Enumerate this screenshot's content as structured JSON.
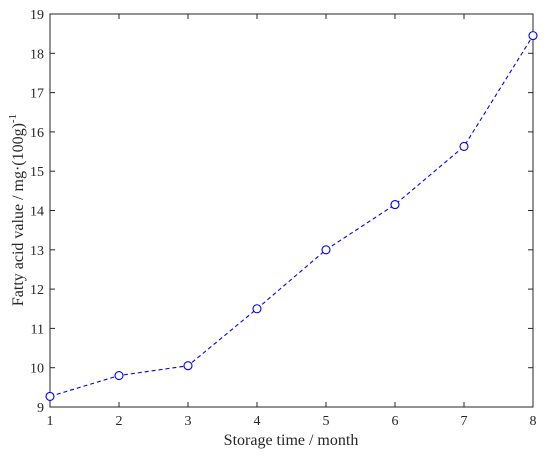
{
  "chart_data": {
    "type": "line",
    "xlabel": "Storage time / month",
    "ylabel": {
      "main": "Fatty acid value / mg·(100g)",
      "sup": "-1"
    },
    "xlim": [
      1,
      8
    ],
    "ylim": [
      9,
      19
    ],
    "xticks": [
      1,
      2,
      3,
      4,
      5,
      6,
      7,
      8
    ],
    "yticks": [
      9,
      10,
      11,
      12,
      13,
      14,
      15,
      16,
      17,
      18,
      19
    ],
    "grid": false,
    "series": [
      {
        "color": "#0000ff",
        "line_style": "dashed",
        "marker": "open-circle",
        "x": [
          1,
          2,
          3,
          4,
          5,
          6,
          7,
          8
        ],
        "y": [
          9.27,
          9.8,
          10.05,
          11.5,
          13.0,
          14.15,
          15.63,
          18.45
        ]
      }
    ]
  }
}
